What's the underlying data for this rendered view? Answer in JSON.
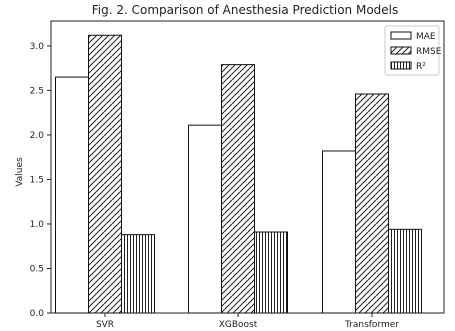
{
  "chart_data": {
    "type": "bar",
    "title": "Fig. 2. Comparison of Anesthesia Prediction Models",
    "xlabel": "",
    "ylabel": "Values",
    "categories": [
      "SVR",
      "XGBoost",
      "Transformer"
    ],
    "series": [
      {
        "name": "MAE",
        "values": [
          2.65,
          2.11,
          1.82
        ],
        "pattern": "plain"
      },
      {
        "name": "RMSE",
        "values": [
          3.12,
          2.79,
          2.46
        ],
        "pattern": "diagonal-hatch"
      },
      {
        "name": "R²",
        "values": [
          0.88,
          0.91,
          0.94
        ],
        "pattern": "vertical-hatch"
      }
    ],
    "ylim": [
      0,
      3.28
    ],
    "yticks": [
      "0.0",
      "0.5",
      "1.0",
      "1.5",
      "2.0",
      "2.5",
      "3.0"
    ],
    "grid": false,
    "legend_position": "top-right",
    "colors": {
      "bar_fill": "#ffffff",
      "bar_stroke": "#111111",
      "hatch": "#222222"
    }
  }
}
